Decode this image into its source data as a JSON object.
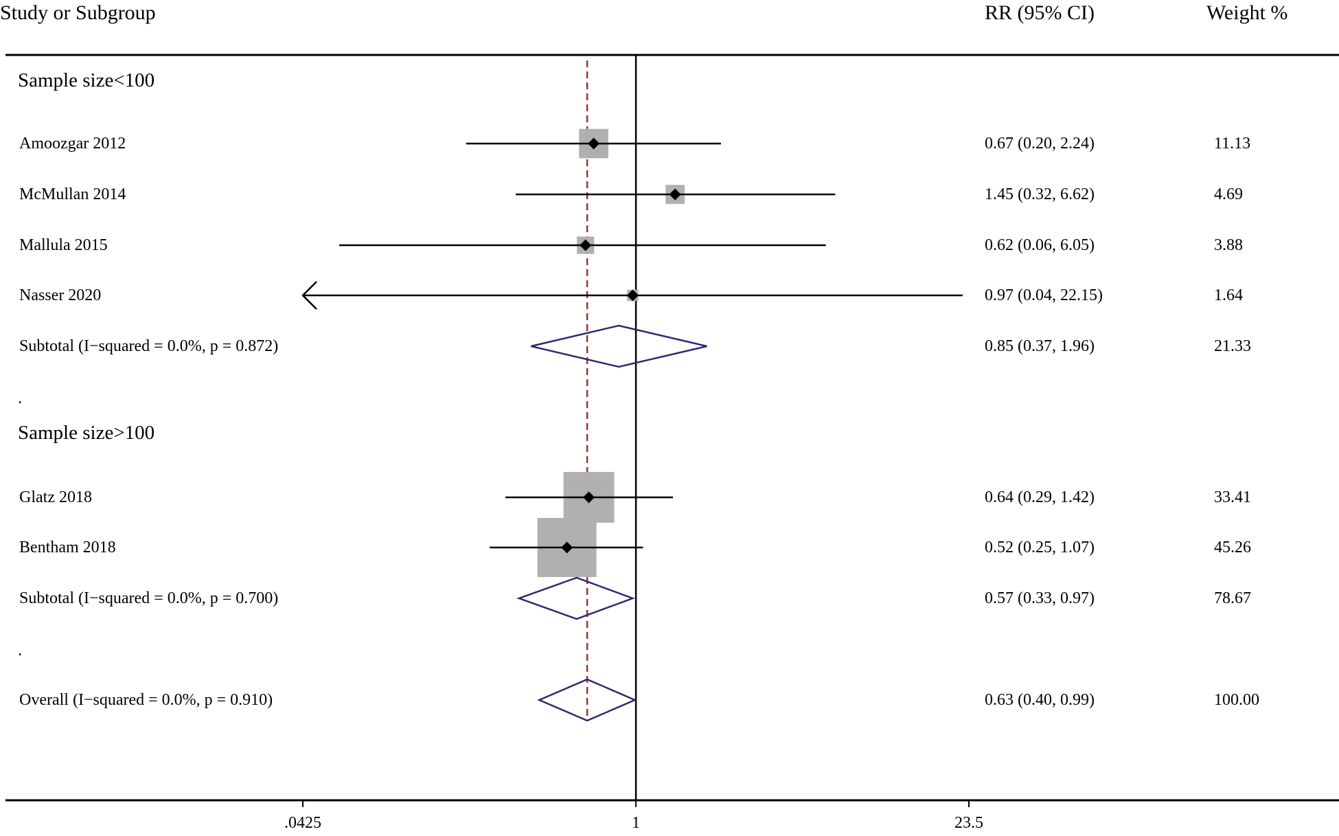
{
  "chart_data": {
    "type": "forest",
    "headers": {
      "study": "Study or Subgroup",
      "effect": "RR (95% CI)",
      "weight": "Weight %"
    },
    "x_scale": "log",
    "xlim": [
      0.0425,
      23.5
    ],
    "x_ticks": [
      {
        "value": 0.0425,
        "label": ".0425"
      },
      {
        "value": 1,
        "label": "1"
      },
      {
        "value": 23.5,
        "label": "23.5"
      }
    ],
    "null_line": 1,
    "overall_line": 0.63,
    "colors": {
      "ci_line": "#000000",
      "weight_box": "#b0b0b0",
      "diamond": "#2e2a6e",
      "overall_dashed": "#a0302e"
    },
    "rows": [
      {
        "kind": "group",
        "label": "Sample size<100"
      },
      {
        "kind": "study",
        "label": "Amoozgar 2012",
        "rr": 0.67,
        "lo": 0.2,
        "hi": 2.24,
        "text": "0.67 (0.20, 2.24)",
        "weight": 11.13,
        "weight_text": "11.13"
      },
      {
        "kind": "study",
        "label": "McMullan 2014",
        "rr": 1.45,
        "lo": 0.32,
        "hi": 6.62,
        "text": "1.45 (0.32, 6.62)",
        "weight": 4.69,
        "weight_text": "4.69"
      },
      {
        "kind": "study",
        "label": "Mallula 2015",
        "rr": 0.62,
        "lo": 0.06,
        "hi": 6.05,
        "text": "0.62 (0.06, 6.05)",
        "weight": 3.88,
        "weight_text": "3.88"
      },
      {
        "kind": "study",
        "label": "Nasser 2020",
        "rr": 0.97,
        "lo": 0.04,
        "hi": 22.15,
        "text": "0.97 (0.04, 22.15)",
        "weight": 1.64,
        "weight_text": "1.64",
        "arrow_left": true
      },
      {
        "kind": "subtotal",
        "label": "Subtotal  (I−squared = 0.0%, p = 0.872)",
        "rr": 0.85,
        "lo": 0.37,
        "hi": 1.96,
        "text": "0.85 (0.37, 1.96)",
        "weight_text": "21.33"
      },
      {
        "kind": "spacer",
        "label": "."
      },
      {
        "kind": "group",
        "label": "Sample size>100"
      },
      {
        "kind": "study",
        "label": "Glatz 2018",
        "rr": 0.64,
        "lo": 0.29,
        "hi": 1.42,
        "text": "0.64 (0.29, 1.42)",
        "weight": 33.41,
        "weight_text": "33.41"
      },
      {
        "kind": "study",
        "label": "Bentham 2018",
        "rr": 0.52,
        "lo": 0.25,
        "hi": 1.07,
        "text": "0.52 (0.25, 1.07)",
        "weight": 45.26,
        "weight_text": "45.26"
      },
      {
        "kind": "subtotal",
        "label": "Subtotal  (I−squared = 0.0%, p = 0.700)",
        "rr": 0.57,
        "lo": 0.33,
        "hi": 0.97,
        "text": "0.57 (0.33, 0.97)",
        "weight_text": "78.67"
      },
      {
        "kind": "spacer",
        "label": "."
      },
      {
        "kind": "overall",
        "label": "Overall  (I−squared = 0.0%, p = 0.910)",
        "rr": 0.63,
        "lo": 0.4,
        "hi": 0.99,
        "text": "0.63 (0.40, 0.99)",
        "weight_text": "100.00"
      }
    ]
  }
}
